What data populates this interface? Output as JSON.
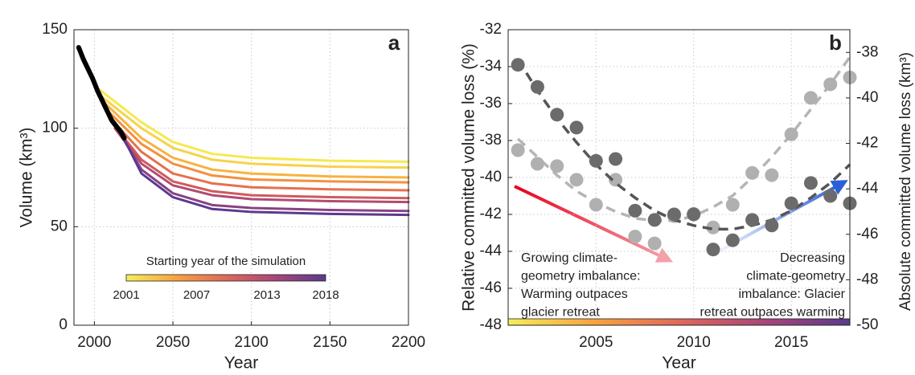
{
  "chart_data": [
    {
      "type": "line",
      "label": "a",
      "xlabel": "Year",
      "ylabel": "Volume (km³)",
      "xlim": [
        1987,
        2200
      ],
      "xticks": [
        2000,
        2050,
        2100,
        2150,
        2200
      ],
      "ylim": [
        0,
        150
      ],
      "yticks": [
        0,
        50,
        100,
        150
      ],
      "grid": true,
      "series": [
        {
          "color": "#f5e94f",
          "x": [
            2001,
            2030,
            2050,
            2075,
            2100,
            2150,
            2200
          ],
          "values": [
            121,
            103,
            93,
            87,
            85,
            83.5,
            83
          ]
        },
        {
          "color": "#f7d24a",
          "x": [
            2003,
            2030,
            2050,
            2075,
            2100,
            2150,
            2200
          ],
          "values": [
            117,
            100,
            90,
            84,
            82,
            80.5,
            80
          ]
        },
        {
          "color": "#f8b23f",
          "x": [
            2005,
            2030,
            2050,
            2075,
            2100,
            2150,
            2200
          ],
          "values": [
            114,
            95,
            85,
            79,
            77,
            75.5,
            75
          ]
        },
        {
          "color": "#f39040",
          "x": [
            2007,
            2030,
            2050,
            2075,
            2100,
            2150,
            2200
          ],
          "values": [
            110,
            92,
            82,
            76,
            74,
            73,
            72.5
          ]
        },
        {
          "color": "#e6704d",
          "x": [
            2009,
            2030,
            2050,
            2075,
            2100,
            2150,
            2200
          ],
          "values": [
            106,
            88,
            77,
            72,
            70,
            69,
            68.5
          ]
        },
        {
          "color": "#cf5a5e",
          "x": [
            2011,
            2030,
            2050,
            2075,
            2100,
            2150,
            2200
          ],
          "values": [
            103,
            84,
            73,
            68,
            66,
            65,
            64.5
          ]
        },
        {
          "color": "#b24c70",
          "x": [
            2013,
            2030,
            2050,
            2075,
            2100,
            2150,
            2200
          ],
          "values": [
            100,
            82,
            71,
            66,
            64,
            63,
            62.5
          ]
        },
        {
          "color": "#8a4282",
          "x": [
            2015,
            2030,
            2050,
            2075,
            2100,
            2150,
            2200
          ],
          "values": [
            99,
            79,
            67,
            61,
            59.5,
            58.5,
            58
          ]
        },
        {
          "color": "#5b3a8e",
          "x": [
            2018,
            2030,
            2050,
            2075,
            2100,
            2150,
            2200
          ],
          "values": [
            96,
            77,
            65,
            59,
            57.5,
            56.5,
            56
          ]
        },
        {
          "color": "#000000",
          "line_width": 6,
          "x": [
            1990,
            1993,
            1996,
            1999,
            2002,
            2005,
            2008,
            2011,
            2014,
            2017,
            2019
          ],
          "values": [
            141,
            135,
            130,
            125,
            119,
            114,
            109,
            104,
            101,
            98,
            95
          ]
        }
      ],
      "colorbar": {
        "title": "Starting year of the simulation",
        "lim": [
          2001,
          2018
        ],
        "ticks": [
          2001,
          2007,
          2013,
          2018
        ],
        "colors": [
          "#f5ed5a",
          "#f8a33e",
          "#e0685a",
          "#a9457a",
          "#5a3a8c"
        ]
      }
    },
    {
      "type": "scatter",
      "label": "b",
      "xlabel": "Year",
      "ylabel": "Relative committed volume loss (%)",
      "y2label": "Absolute committed volume loss (km³)",
      "xlim": [
        2000.5,
        2018
      ],
      "xticks": [
        2005,
        2010,
        2015
      ],
      "ylim": [
        -48,
        -32
      ],
      "yticks": [
        -48,
        -46,
        -44,
        -42,
        -40,
        -38,
        -36,
        -34,
        -32
      ],
      "y2lim": [
        -50,
        -37
      ],
      "y2ticks": [
        -50,
        -48,
        -46,
        -44,
        -42,
        -40,
        -38
      ],
      "grid": true,
      "x": [
        2001,
        2002,
        2003,
        2004,
        2005,
        2006,
        2007,
        2008,
        2009,
        2010,
        2011,
        2012,
        2013,
        2014,
        2015,
        2016,
        2017,
        2018
      ],
      "series": [
        {
          "mode": "dashed-line",
          "color": "#b5b5b5",
          "axis": "y2",
          "values": [
            -41.8,
            -42.6,
            -43.4,
            -44.1,
            -44.6,
            -45.0,
            -45.3,
            -45.4,
            -45.4,
            -45.2,
            -44.8,
            -44.3,
            -43.5,
            -42.6,
            -41.6,
            -40.5,
            -39.4,
            -38.2
          ]
        },
        {
          "mode": "markers",
          "color": "#b0b0b0",
          "axis": "y2",
          "values": [
            -42.3,
            -42.9,
            -43.0,
            -43.6,
            -44.7,
            -43.6,
            -46.1,
            -46.4,
            -45.2,
            -45.1,
            -45.7,
            -44.7,
            -43.3,
            -43.4,
            -41.6,
            -40.0,
            -39.4,
            -39.1
          ]
        },
        {
          "mode": "dashed-line",
          "color": "#555555",
          "values": [
            -33.6,
            -35.3,
            -36.8,
            -38.1,
            -39.3,
            -40.3,
            -41.1,
            -41.8,
            -42.3,
            -42.6,
            -42.8,
            -42.8,
            -42.6,
            -42.3,
            -41.8,
            -41.1,
            -40.3,
            -39.3
          ]
        },
        {
          "mode": "markers",
          "color": "#6b6b6b",
          "values": [
            -33.9,
            -35.1,
            -36.6,
            -37.3,
            -39.1,
            -39.0,
            -41.8,
            -42.3,
            -42.0,
            -42.0,
            -43.9,
            -43.4,
            -42.3,
            -42.6,
            -41.4,
            -40.3,
            -41.0,
            -41.4
          ]
        }
      ],
      "colorbar": {
        "lim": [
          2001,
          2018
        ],
        "colors": [
          "#f5ed5a",
          "#f8a33e",
          "#e0685a",
          "#a9457a",
          "#5a3a8c"
        ]
      },
      "annotations": [
        {
          "color": "#e8001c",
          "align": "left",
          "lines": [
            "Growing climate-",
            "geometry imbalance:",
            "Warming outpaces",
            "glacier retreat"
          ]
        },
        {
          "color": "#2a5fd8",
          "align": "right",
          "lines": [
            "Decreasing",
            "climate-geometry",
            "imbalance: Glacier",
            "retreat outpaces warming"
          ]
        }
      ]
    }
  ]
}
